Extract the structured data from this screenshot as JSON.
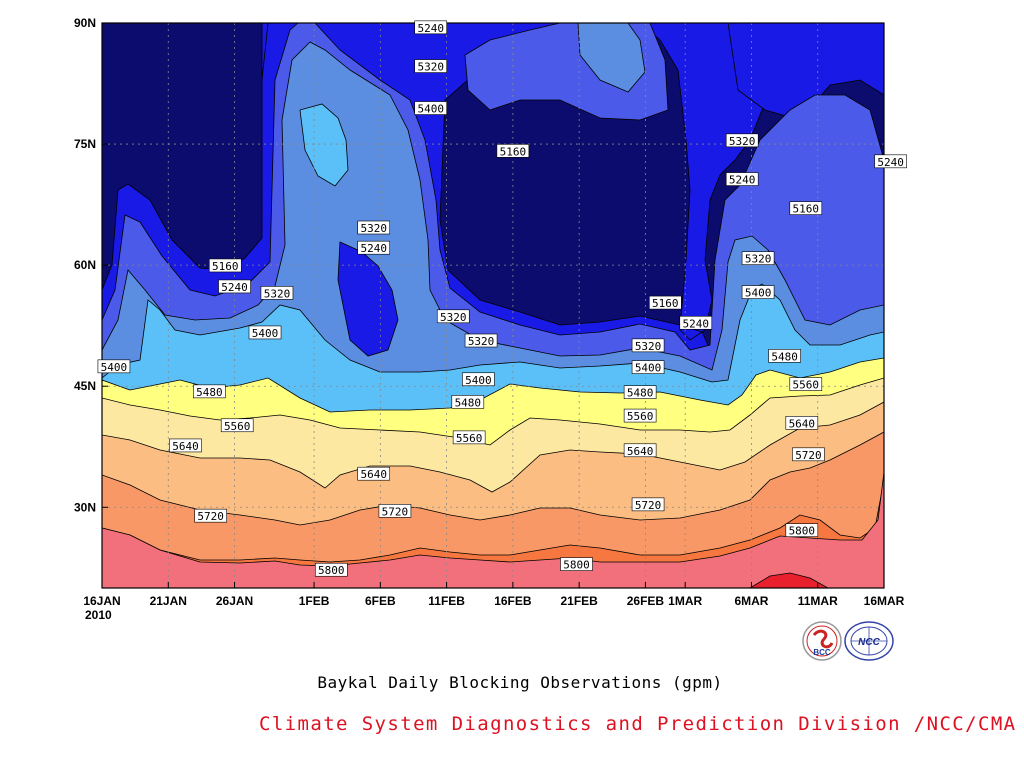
{
  "chart_data": {
    "type": "heatmap",
    "title": "Baykal Daily Blocking Observations (gpm)",
    "credit": "Climate System Diagnostics and Prediction Division /NCC/CMA",
    "year_label": "2010",
    "x_ticks": [
      "16JAN",
      "21JAN",
      "26JAN",
      "1FEB",
      "6FEB",
      "11FEB",
      "16FEB",
      "21FEB",
      "26FEB",
      "1MAR",
      "6MAR",
      "11MAR",
      "16MAR"
    ],
    "x_tick_days": [
      0,
      5,
      10,
      16,
      21,
      26,
      31,
      36,
      41,
      44,
      49,
      54,
      59
    ],
    "x_range_days": [
      0,
      59
    ],
    "y_ticks": [
      "90N",
      "75N",
      "60N",
      "45N",
      "30N"
    ],
    "y_tick_values": [
      90,
      75,
      60,
      45,
      30
    ],
    "y_range": [
      20,
      90
    ],
    "grid": true,
    "contour_levels": [
      5160,
      5240,
      5320,
      5400,
      5480,
      5560,
      5640,
      5720,
      5800,
      5880
    ],
    "fill_colors": [
      "#0c0c6e",
      "#1a1ae6",
      "#4b5ae8",
      "#5b8ee0",
      "#5cc0f8",
      "#ffff80",
      "#fde8a2",
      "#fbbd82",
      "#f89866",
      "#f67840",
      "#f2707c",
      "#e8202e"
    ],
    "contour_labels": [
      {
        "text": "5240",
        "day": 24.8,
        "lat": 89.4
      },
      {
        "text": "5320",
        "day": 24.8,
        "lat": 84.6
      },
      {
        "text": "5400",
        "day": 24.8,
        "lat": 79.4
      },
      {
        "text": "5160",
        "day": 31.0,
        "lat": 74.1
      },
      {
        "text": "5320",
        "day": 48.3,
        "lat": 75.4
      },
      {
        "text": "5240",
        "day": 48.3,
        "lat": 70.6
      },
      {
        "text": "5160",
        "day": 53.1,
        "lat": 67.0
      },
      {
        "text": "5240",
        "day": 59.5,
        "lat": 72.8
      },
      {
        "text": "5320",
        "day": 20.5,
        "lat": 64.6
      },
      {
        "text": "5240",
        "day": 20.5,
        "lat": 62.1
      },
      {
        "text": "5160",
        "day": 9.3,
        "lat": 59.9
      },
      {
        "text": "5240",
        "day": 10.0,
        "lat": 57.3
      },
      {
        "text": "5320",
        "day": 13.2,
        "lat": 56.5
      },
      {
        "text": "5400",
        "day": 12.3,
        "lat": 51.6
      },
      {
        "text": "5320",
        "day": 26.5,
        "lat": 53.6
      },
      {
        "text": "5320",
        "day": 28.6,
        "lat": 50.6
      },
      {
        "text": "5400",
        "day": 28.4,
        "lat": 45.8
      },
      {
        "text": "5480",
        "day": 27.6,
        "lat": 43.0
      },
      {
        "text": "5560",
        "day": 27.7,
        "lat": 38.6
      },
      {
        "text": "5400",
        "day": 0.9,
        "lat": 47.4
      },
      {
        "text": "5480",
        "day": 8.1,
        "lat": 44.3
      },
      {
        "text": "5560",
        "day": 10.2,
        "lat": 40.1
      },
      {
        "text": "5640",
        "day": 6.3,
        "lat": 37.6
      },
      {
        "text": "5720",
        "day": 8.2,
        "lat": 28.9
      },
      {
        "text": "5640",
        "day": 20.5,
        "lat": 34.1
      },
      {
        "text": "5720",
        "day": 22.1,
        "lat": 29.5
      },
      {
        "text": "5800",
        "day": 17.3,
        "lat": 22.2
      },
      {
        "text": "5160",
        "day": 42.5,
        "lat": 55.3
      },
      {
        "text": "5240",
        "day": 44.8,
        "lat": 52.8
      },
      {
        "text": "5320",
        "day": 41.2,
        "lat": 50.0
      },
      {
        "text": "5400",
        "day": 41.2,
        "lat": 47.3
      },
      {
        "text": "5480",
        "day": 40.6,
        "lat": 44.2
      },
      {
        "text": "5560",
        "day": 40.6,
        "lat": 41.3
      },
      {
        "text": "5640",
        "day": 40.6,
        "lat": 37.0
      },
      {
        "text": "5720",
        "day": 41.2,
        "lat": 30.3
      },
      {
        "text": "5800",
        "day": 35.8,
        "lat": 22.9
      },
      {
        "text": "5320",
        "day": 49.5,
        "lat": 60.8
      },
      {
        "text": "5400",
        "day": 49.5,
        "lat": 56.6
      },
      {
        "text": "5480",
        "day": 51.5,
        "lat": 48.7
      },
      {
        "text": "5560",
        "day": 53.1,
        "lat": 45.2
      },
      {
        "text": "5640",
        "day": 52.8,
        "lat": 40.4
      },
      {
        "text": "5720",
        "day": 53.3,
        "lat": 36.5
      },
      {
        "text": "5800",
        "day": 52.8,
        "lat": 27.1
      }
    ]
  },
  "logos": {
    "bcc_text": "BCC",
    "ncc_text": "NCC"
  }
}
